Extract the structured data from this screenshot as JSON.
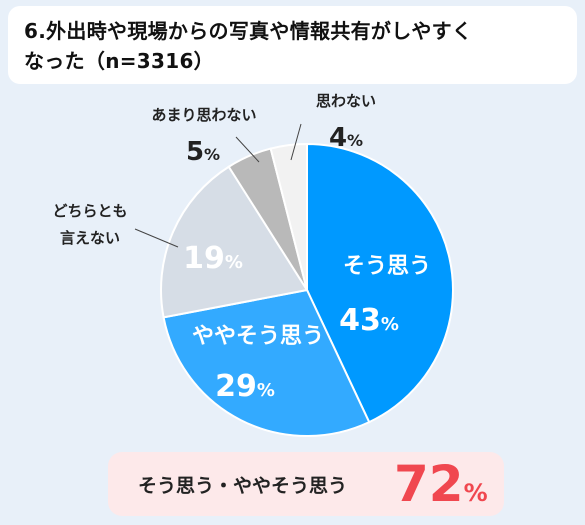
{
  "title": "6.外出時や現場からの写真や情報共有がしやすくなった（n=3316）",
  "title_lines": [
    "6.外出時や現場からの写真や情報共有がしやすく",
    "なった（n=3316）"
  ],
  "chart_data": {
    "type": "pie",
    "title": "6.外出時や現場からの写真や情報共有がしやすくなった（n=3316）",
    "n": 3316,
    "start": "12 o'clock",
    "direction": "clockwise",
    "unit": "%",
    "slices": [
      {
        "label": "そう思う",
        "value": 43,
        "color": "#0099ff"
      },
      {
        "label": "ややそう思う",
        "value": 29,
        "color": "#33aaff"
      },
      {
        "label": "どちらとも言えない",
        "value": 19,
        "color": "#d6dde6"
      },
      {
        "label": "あまり思わない",
        "value": 5,
        "color": "#b9b9b9"
      },
      {
        "label": "思わない",
        "value": 4,
        "color": "#f2f2f2"
      }
    ]
  },
  "summary": {
    "label": "そう思う・ややそう思う",
    "value": "72",
    "unit": "%"
  },
  "colors": {
    "background": "#e8f0f9",
    "accent": "#f0474f",
    "label_text": "#222222"
  }
}
